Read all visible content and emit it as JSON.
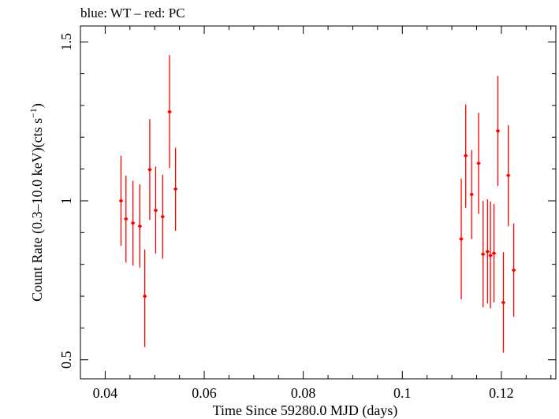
{
  "chart_data": {
    "type": "scatter",
    "title": "blue: WT – red: PC",
    "xlabel": "Time Since 59280.0 MJD (days)",
    "ylabel_main": "Count Rate (0.3–10.0 keV)(cts s",
    "ylabel_sup": "−1",
    "ylabel_end": ")",
    "xlim": [
      0.035,
      0.131
    ],
    "ylim": [
      0.44,
      1.55
    ],
    "x_ticks": [
      {
        "value": 0.04,
        "label": "0.04"
      },
      {
        "value": 0.06,
        "label": "0.06"
      },
      {
        "value": 0.08,
        "label": "0.08"
      },
      {
        "value": 0.1,
        "label": "0.1"
      },
      {
        "value": 0.12,
        "label": "0.12"
      }
    ],
    "y_ticks": [
      {
        "value": 0.5,
        "label": "0.5"
      },
      {
        "value": 1.0,
        "label": "1"
      },
      {
        "value": 1.5,
        "label": "1.5"
      }
    ],
    "grid": false,
    "series": [
      {
        "color": "#ff0000",
        "points": [
          {
            "x": 0.0432,
            "xerr": 0.0004,
            "y": 1.0,
            "ylo": 0.858,
            "yhi": 1.142
          },
          {
            "x": 0.0442,
            "xerr": 0.0004,
            "y": 0.943,
            "ylo": 0.806,
            "yhi": 1.079
          },
          {
            "x": 0.0456,
            "xerr": 0.0004,
            "y": 0.93,
            "ylo": 0.796,
            "yhi": 1.063
          },
          {
            "x": 0.047,
            "xerr": 0.0004,
            "y": 0.92,
            "ylo": 0.79,
            "yhi": 1.052
          },
          {
            "x": 0.048,
            "xerr": 0.0004,
            "y": 0.7,
            "ylo": 0.54,
            "yhi": 0.847
          },
          {
            "x": 0.049,
            "xerr": 0.0004,
            "y": 1.098,
            "ylo": 0.94,
            "yhi": 1.257
          },
          {
            "x": 0.0502,
            "xerr": 0.0004,
            "y": 0.97,
            "ylo": 0.834,
            "yhi": 1.108
          },
          {
            "x": 0.0516,
            "xerr": 0.0004,
            "y": 0.95,
            "ylo": 0.818,
            "yhi": 1.082
          },
          {
            "x": 0.053,
            "xerr": 0.0004,
            "y": 1.28,
            "ylo": 1.103,
            "yhi": 1.458
          },
          {
            "x": 0.0542,
            "xerr": 0.0004,
            "y": 1.037,
            "ylo": 0.906,
            "yhi": 1.167
          },
          {
            "x": 0.1119,
            "xerr": 0.0004,
            "y": 0.88,
            "ylo": 0.69,
            "yhi": 1.07
          },
          {
            "x": 0.1128,
            "xerr": 0.0004,
            "y": 1.142,
            "ylo": 0.978,
            "yhi": 1.303
          },
          {
            "x": 0.114,
            "xerr": 0.0004,
            "y": 1.02,
            "ylo": 0.88,
            "yhi": 1.16
          },
          {
            "x": 0.1154,
            "xerr": 0.0004,
            "y": 1.118,
            "ylo": 0.959,
            "yhi": 1.277
          },
          {
            "x": 0.1163,
            "xerr": 0.0004,
            "y": 0.832,
            "ylo": 0.665,
            "yhi": 1.0
          },
          {
            "x": 0.1172,
            "xerr": 0.0004,
            "y": 0.84,
            "ylo": 0.677,
            "yhi": 1.005
          },
          {
            "x": 0.1178,
            "xerr": 0.0004,
            "y": 0.828,
            "ylo": 0.662,
            "yhi": 0.998
          },
          {
            "x": 0.1185,
            "xerr": 0.0004,
            "y": 0.835,
            "ylo": 0.68,
            "yhi": 0.99
          },
          {
            "x": 0.1193,
            "xerr": 0.0004,
            "y": 1.22,
            "ylo": 1.047,
            "yhi": 1.393
          },
          {
            "x": 0.1204,
            "xerr": 0.0004,
            "y": 0.68,
            "ylo": 0.523,
            "yhi": 0.838
          },
          {
            "x": 0.1214,
            "xerr": 0.0004,
            "y": 1.08,
            "ylo": 0.92,
            "yhi": 1.238
          },
          {
            "x": 0.1225,
            "xerr": 0.0004,
            "y": 0.782,
            "ylo": 0.635,
            "yhi": 0.929
          }
        ]
      }
    ]
  }
}
